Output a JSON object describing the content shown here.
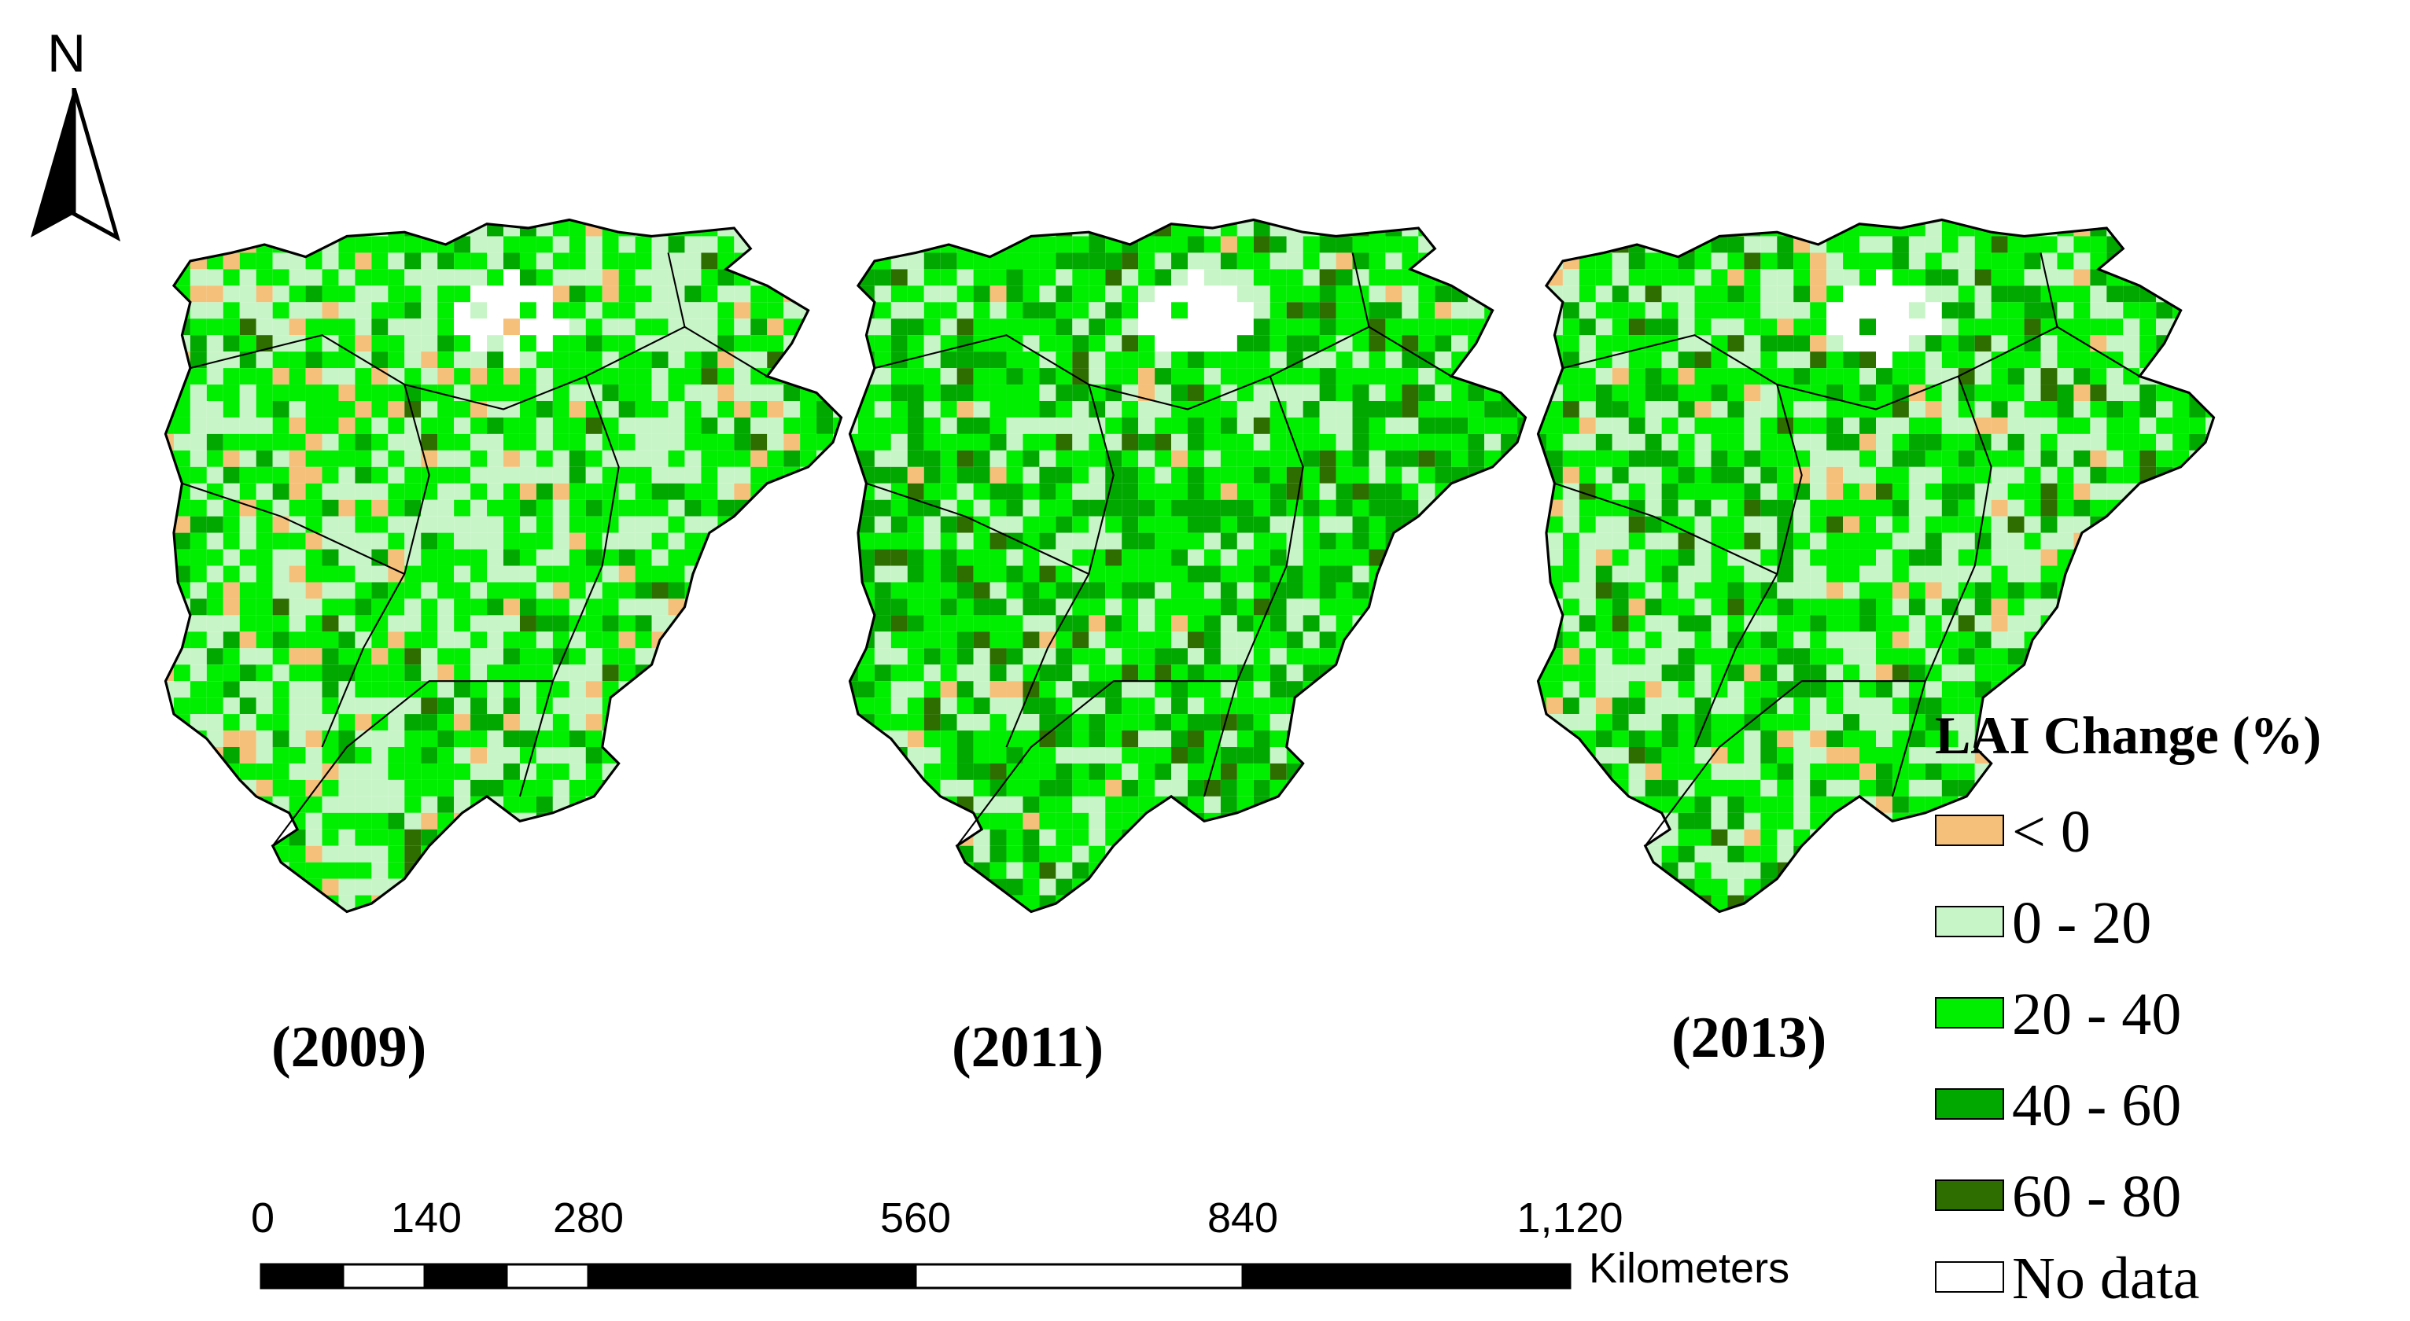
{
  "north": {
    "label": "N"
  },
  "maps": [
    {
      "year_label": "(2009)",
      "seed": 2009,
      "weights": [
        0.07,
        0.36,
        0.45,
        0.11,
        0.01
      ]
    },
    {
      "year_label": "(2011)",
      "seed": 2011,
      "weights": [
        0.02,
        0.22,
        0.44,
        0.27,
        0.05
      ]
    },
    {
      "year_label": "(2013)",
      "seed": 2013,
      "weights": [
        0.05,
        0.32,
        0.42,
        0.18,
        0.03
      ]
    }
  ],
  "legend": {
    "title": "LAI  Change (%)",
    "items": [
      {
        "label": "< 0",
        "color": "#f5c07a"
      },
      {
        "label": "0 - 20",
        "color": "#c8f5c8"
      },
      {
        "label": "20 - 40",
        "color": "#00ee00"
      },
      {
        "label": "40 - 60",
        "color": "#00a800"
      },
      {
        "label": "60 - 80",
        "color": "#2e6e00"
      },
      {
        "label": "No data",
        "color": "#ffffff"
      }
    ]
  },
  "scale_bar": {
    "ticks": [
      "0",
      "140",
      "280",
      "560",
      "840",
      "1,120"
    ],
    "unit": "Kilometers"
  }
}
